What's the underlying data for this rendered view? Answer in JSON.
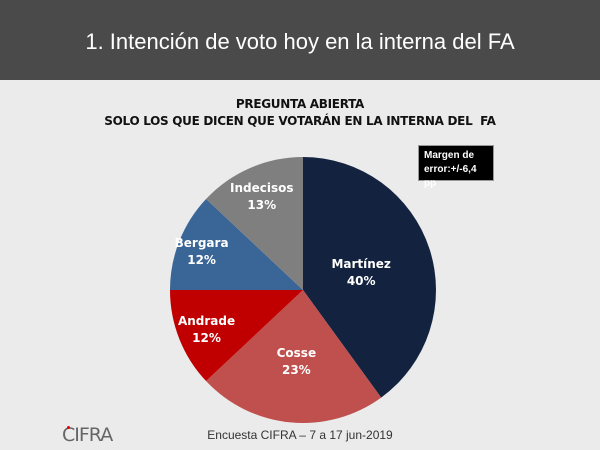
{
  "header": {
    "title": "1. Intención de voto hoy en la interna del FA"
  },
  "chart_data": {
    "type": "pie",
    "title": "PREGUNTA ABIERTA",
    "subtitle": "SOLO LOS QUE DICEN QUE VOTARÁN EN LA INTERNA DEL  FA",
    "categories": [
      "Martínez",
      "Cosse",
      "Andrade",
      "Bergara",
      "Indecisos"
    ],
    "values": [
      40,
      23,
      12,
      12,
      13
    ],
    "labels": [
      "40%",
      "23%",
      "12%",
      "12%",
      "13%"
    ],
    "colors": [
      "#13233f",
      "#c0504d",
      "#c00000",
      "#3a6597",
      "#7f7f7f"
    ],
    "annotation": "Margen de error:+/-6,4 pp"
  },
  "footer": {
    "source": "Encuesta CIFRA – 7 a 17 jun-2019",
    "logo": "CIFRA"
  }
}
